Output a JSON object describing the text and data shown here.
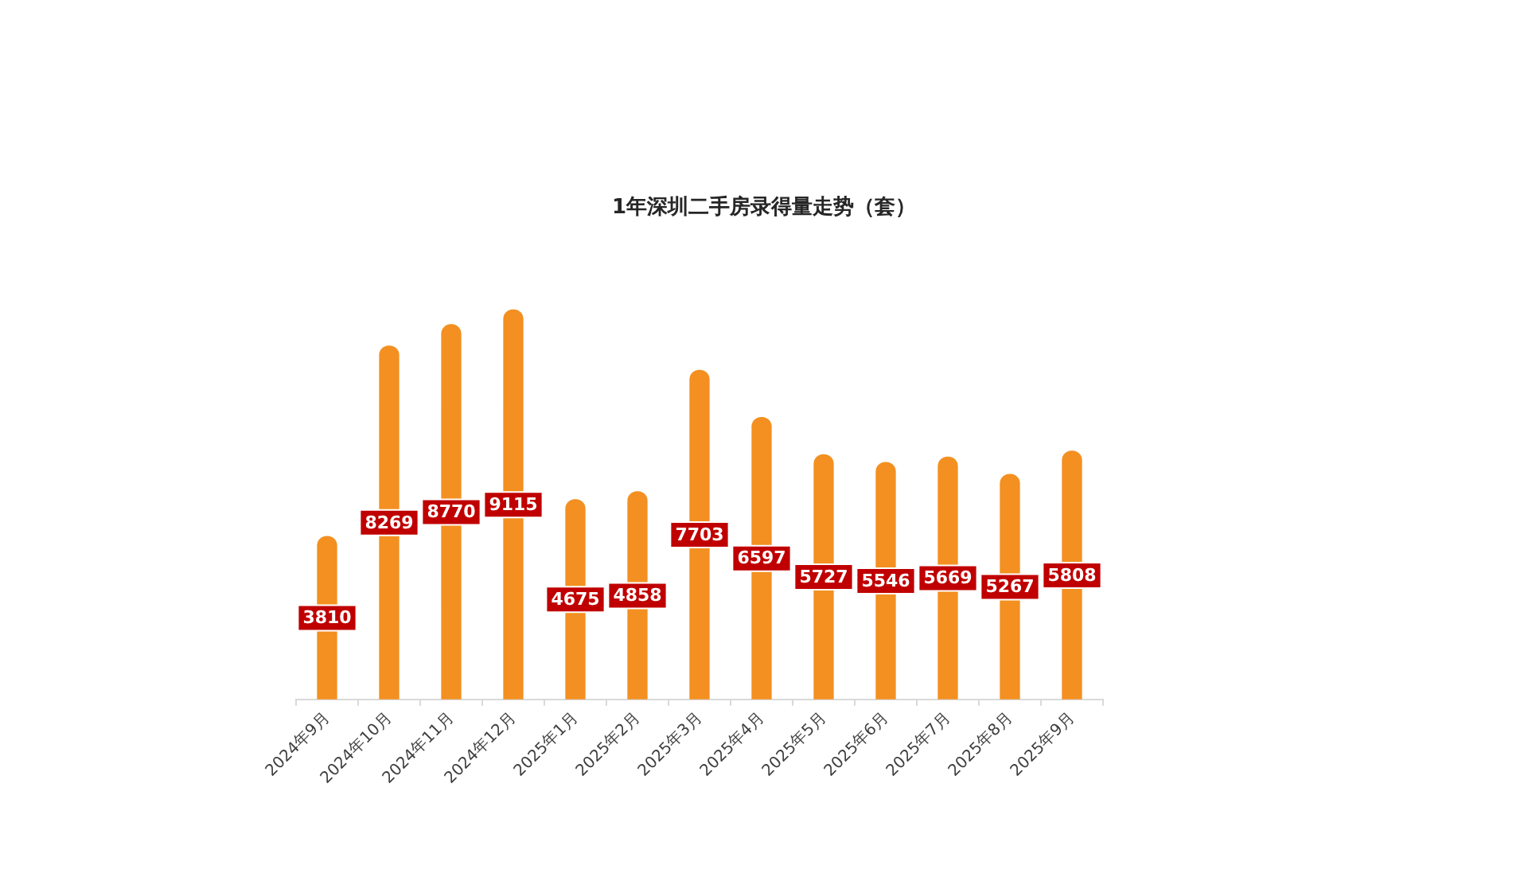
{
  "chart_data": {
    "type": "bar",
    "title": "1年深圳二手房录得量走势（套）",
    "categories": [
      "2024年9月",
      "2024年10月",
      "2024年11月",
      "2024年12月",
      "2025年1月",
      "2025年2月",
      "2025年3月",
      "2025年4月",
      "2025年5月",
      "2025年6月",
      "2025年7月",
      "2025年8月",
      "2025年9月"
    ],
    "values": [
      3810,
      8269,
      8770,
      9115,
      4675,
      4858,
      7703,
      6597,
      5727,
      5546,
      5669,
      5267,
      5808
    ],
    "color": "#f39021",
    "data_labels": true,
    "legend": false,
    "tick_labels": "x"
  }
}
